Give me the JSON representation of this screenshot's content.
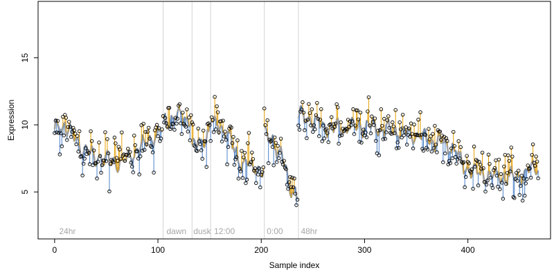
{
  "chart_data": {
    "type": "scatter",
    "xlabel": "Sample index",
    "ylabel": "Expression",
    "xlim": [
      -16,
      480
    ],
    "ylim": [
      1.5,
      19.2
    ],
    "x_ticks": [
      0,
      100,
      200,
      300,
      400
    ],
    "y_ticks": [
      5,
      10,
      15
    ],
    "grid": false,
    "colors": {
      "above_fit": "#E69F00",
      "below_fit": "#4A80C8",
      "fit_line": "#A0A0A0",
      "point_edge": "#000000",
      "phase_divider": "#D3D3D3",
      "phase_text": "#A6A6A6"
    },
    "phase_dividers": [
      105,
      133,
      151,
      203,
      236
    ],
    "phase_labels": [
      {
        "x": 3,
        "text": "24hr"
      },
      {
        "x": 107,
        "text": "dawn"
      },
      {
        "x": 133,
        "text": "dusk"
      },
      {
        "x": 153,
        "text": "12:00"
      },
      {
        "x": 204,
        "text": "0:00"
      },
      {
        "x": 237,
        "text": "48hr"
      }
    ],
    "segments": [
      {
        "start": 0,
        "end": 104,
        "levels": [
          [
            0,
            9.6
          ],
          [
            10,
            10.1
          ],
          [
            22,
            8.6
          ],
          [
            35,
            7.7
          ],
          [
            50,
            7.3
          ],
          [
            64,
            7.1
          ],
          [
            78,
            8.0
          ],
          [
            92,
            8.9
          ],
          [
            104,
            9.6
          ]
        ]
      },
      {
        "start": 105,
        "end": 132,
        "levels": [
          [
            105,
            10.3
          ],
          [
            118,
            10.5
          ],
          [
            132,
            10.6
          ]
        ]
      },
      {
        "start": 133,
        "end": 150,
        "levels": [
          [
            133,
            8.3
          ],
          [
            141,
            8.7
          ],
          [
            150,
            9.6
          ]
        ]
      },
      {
        "start": 151,
        "end": 202,
        "levels": [
          [
            151,
            10.2
          ],
          [
            160,
            10.0
          ],
          [
            170,
            8.8
          ],
          [
            180,
            7.3
          ],
          [
            190,
            6.8
          ],
          [
            202,
            6.6
          ]
        ]
      },
      {
        "start": 203,
        "end": 235,
        "levels": [
          [
            203,
            9.3
          ],
          [
            212,
            8.8
          ],
          [
            220,
            7.6
          ],
          [
            228,
            5.2
          ],
          [
            235,
            4.9
          ]
        ]
      },
      {
        "start": 236,
        "end": 468,
        "levels": [
          [
            236,
            10.8
          ],
          [
            250,
            10.3
          ],
          [
            270,
            9.7
          ],
          [
            290,
            10.0
          ],
          [
            310,
            9.8
          ],
          [
            330,
            9.5
          ],
          [
            350,
            9.2
          ],
          [
            370,
            8.7
          ],
          [
            385,
            8.4
          ],
          [
            395,
            7.0
          ],
          [
            410,
            6.4
          ],
          [
            430,
            6.1
          ],
          [
            450,
            6.2
          ],
          [
            468,
            7.0
          ]
        ]
      }
    ],
    "point_noise_sd": 1.05,
    "fit_wiggle_amplitude": 0.6
  }
}
